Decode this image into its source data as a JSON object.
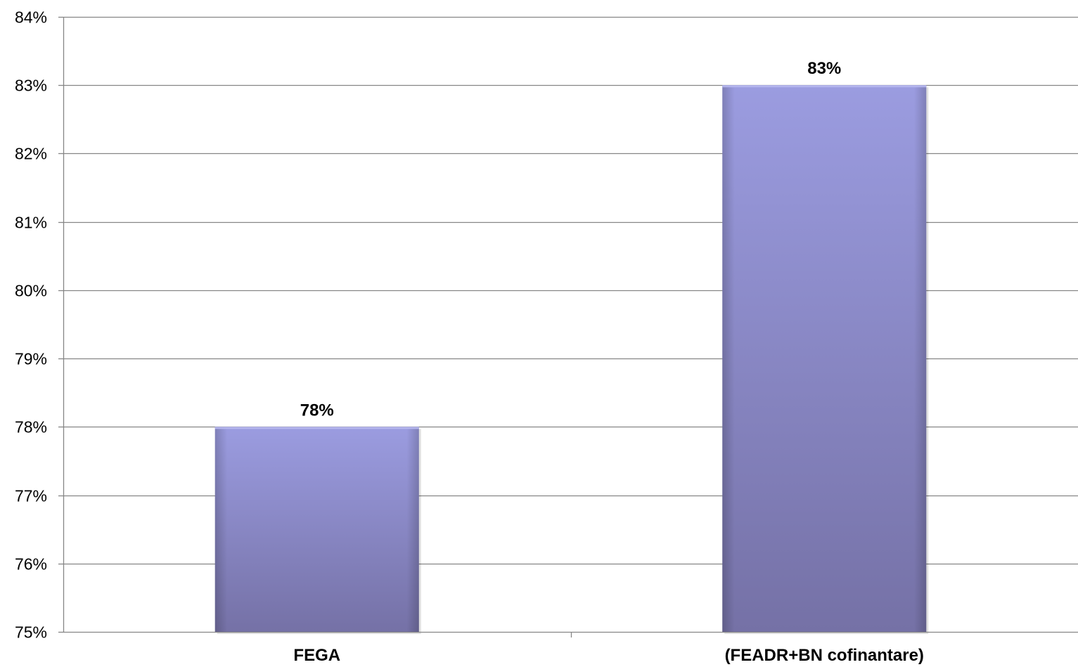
{
  "chart_data": {
    "type": "bar",
    "title": "",
    "xlabel": "",
    "ylabel": "",
    "categories": [
      "FEGA",
      "(FEADR+BN cofinantare)"
    ],
    "values": [
      78,
      83
    ],
    "data_labels": [
      "78%",
      "83%"
    ],
    "ylim": [
      75,
      84
    ],
    "y_ticks": [
      75,
      76,
      77,
      78,
      79,
      80,
      81,
      82,
      83,
      84
    ],
    "y_tick_labels": [
      "75%",
      "76%",
      "77%",
      "78%",
      "79%",
      "80%",
      "81%",
      "82%",
      "83%",
      "84%"
    ],
    "grid": true,
    "legend": "none",
    "colors": {
      "bar_top": "#9b9ce0",
      "bar_bottom": "#7571a6",
      "gridline": "#868686",
      "axis": "#868686"
    }
  }
}
